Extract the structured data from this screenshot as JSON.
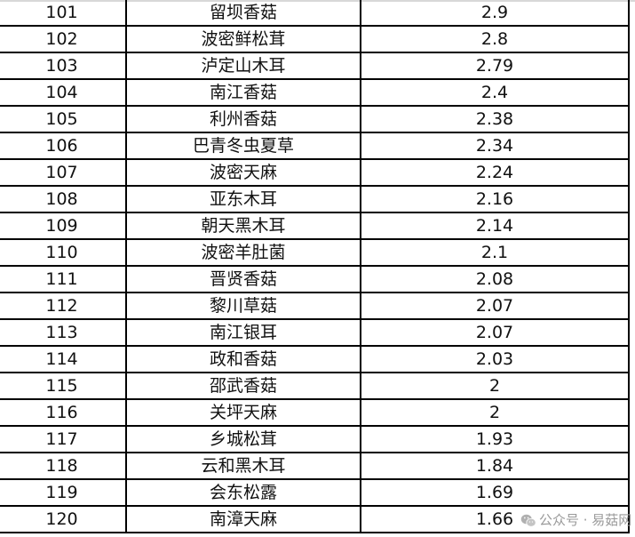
{
  "rows": [
    {
      "rank": "101",
      "name": "留坝香菇",
      "value": "2.9"
    },
    {
      "rank": "102",
      "name": "波密鲜松茸",
      "value": "2.8"
    },
    {
      "rank": "103",
      "name": "泸定山木耳",
      "value": "2.79"
    },
    {
      "rank": "104",
      "name": "南江香菇",
      "value": "2.4"
    },
    {
      "rank": "105",
      "name": "利州香菇",
      "value": "2.38"
    },
    {
      "rank": "106",
      "name": "巴青冬虫夏草",
      "value": "2.34"
    },
    {
      "rank": "107",
      "name": "波密天麻",
      "value": "2.24"
    },
    {
      "rank": "108",
      "name": "亚东木耳",
      "value": "2.16"
    },
    {
      "rank": "109",
      "name": "朝天黑木耳",
      "value": "2.14"
    },
    {
      "rank": "110",
      "name": "波密羊肚菌",
      "value": "2.1"
    },
    {
      "rank": "111",
      "name": "晋贤香菇",
      "value": "2.08"
    },
    {
      "rank": "112",
      "name": "黎川草菇",
      "value": "2.07"
    },
    {
      "rank": "113",
      "name": "南江银耳",
      "value": "2.07"
    },
    {
      "rank": "114",
      "name": "政和香菇",
      "value": "2.03"
    },
    {
      "rank": "115",
      "name": "邵武香菇",
      "value": "2"
    },
    {
      "rank": "116",
      "name": "关坪天麻",
      "value": "2"
    },
    {
      "rank": "117",
      "name": "乡城松茸",
      "value": "1.93"
    },
    {
      "rank": "118",
      "name": "云和黑木耳",
      "value": "1.84"
    },
    {
      "rank": "119",
      "name": "会东松露",
      "value": "1.69"
    },
    {
      "rank": "120",
      "name": "南漳天麻",
      "value": "1.66"
    }
  ],
  "watermark": {
    "text": "公众号 · 易菇网",
    "icon": "wechat-icon"
  }
}
